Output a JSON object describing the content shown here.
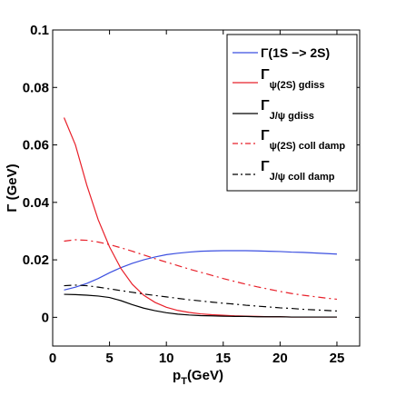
{
  "chart_data": {
    "type": "line",
    "title": "",
    "xlabel": "p",
    "xlabel_sub": "T",
    "xlabel_unit": "(GeV)",
    "ylabel": "Γ (GeV)",
    "xlim": [
      0,
      27
    ],
    "ylim": [
      -0.01,
      0.1
    ],
    "xticks": [
      0,
      5,
      10,
      15,
      20,
      25
    ],
    "yticks": [
      0,
      0.02,
      0.04,
      0.06,
      0.08,
      0.1
    ],
    "ytick_labels": [
      "0",
      "0.02",
      "0.04",
      "0.06",
      "0.08",
      "0.1"
    ],
    "grid": false,
    "legend_position": "top-right",
    "series": [
      {
        "name": "Γ(1S −> 2S)",
        "label_main": "Γ(1S −> 2S)",
        "label_sub": "",
        "color": "#3b4fe0",
        "dash": "solid",
        "x": [
          1,
          2,
          3,
          4,
          5,
          6,
          7,
          8,
          9,
          10,
          11,
          12,
          13,
          14,
          15,
          16,
          17,
          18,
          19,
          20,
          21,
          22,
          23,
          24,
          25
        ],
        "y": [
          0.0095,
          0.0105,
          0.0118,
          0.0135,
          0.0155,
          0.0173,
          0.0188,
          0.02,
          0.021,
          0.0218,
          0.0223,
          0.0227,
          0.023,
          0.0231,
          0.0232,
          0.0232,
          0.0232,
          0.0231,
          0.023,
          0.0229,
          0.0227,
          0.0226,
          0.0224,
          0.0222,
          0.022
        ]
      },
      {
        "name": "Γψ(2S) gdiss",
        "label_main": "Γ",
        "label_sub": "ψ(2S) gdiss",
        "color": "#e8202a",
        "dash": "solid",
        "x": [
          1,
          2,
          3,
          4,
          5,
          6,
          7,
          8,
          9,
          10,
          11,
          12,
          13,
          14,
          15,
          16,
          17,
          18,
          19,
          20,
          21,
          22,
          23,
          24,
          25
        ],
        "y": [
          0.0695,
          0.06,
          0.046,
          0.034,
          0.0245,
          0.017,
          0.0115,
          0.0077,
          0.0052,
          0.0035,
          0.0024,
          0.0017,
          0.0012,
          0.0009,
          0.0007,
          0.0005,
          0.0004,
          0.0003,
          0.0002,
          0.0002,
          0.0001,
          0.0001,
          0.0001,
          0.0001,
          0.0001
        ]
      },
      {
        "name": "ΓJ/ψ gdiss",
        "label_main": "Γ",
        "label_sub": "J/ψ gdiss",
        "color": "#000000",
        "dash": "solid",
        "x": [
          1,
          2,
          3,
          4,
          5,
          6,
          7,
          8,
          9,
          10,
          11,
          12,
          13,
          14,
          15,
          16,
          17,
          18,
          19,
          20,
          21,
          22,
          23,
          24,
          25
        ],
        "y": [
          0.008,
          0.0079,
          0.0077,
          0.0074,
          0.0069,
          0.0058,
          0.0044,
          0.0032,
          0.0023,
          0.0016,
          0.0011,
          0.0008,
          0.0006,
          0.0005,
          0.0004,
          0.0003,
          0.0003,
          0.0002,
          0.0002,
          0.0002,
          0.0001,
          0.0001,
          0.0001,
          0.0001,
          0.0001
        ]
      },
      {
        "name": "Γψ(2S) coll damp",
        "label_main": "Γ",
        "label_sub": "ψ(2S) coll damp",
        "color": "#e8202a",
        "dash": "dashdot",
        "x": [
          1,
          2,
          3,
          4,
          5,
          6,
          7,
          8,
          9,
          10,
          11,
          12,
          13,
          14,
          15,
          16,
          17,
          18,
          19,
          20,
          21,
          22,
          23,
          24,
          25
        ],
        "y": [
          0.0265,
          0.027,
          0.0268,
          0.0262,
          0.0253,
          0.0242,
          0.023,
          0.0217,
          0.0204,
          0.0192,
          0.018,
          0.0168,
          0.0157,
          0.0146,
          0.0135,
          0.0125,
          0.0115,
          0.0106,
          0.0098,
          0.009,
          0.0083,
          0.0077,
          0.0072,
          0.0067,
          0.0063
        ]
      },
      {
        "name": "ΓJ/ψ coll damp",
        "label_main": "Γ",
        "label_sub": "J/ψ coll damp",
        "color": "#000000",
        "dash": "dashdot",
        "x": [
          1,
          2,
          3,
          4,
          5,
          6,
          7,
          8,
          9,
          10,
          11,
          12,
          13,
          14,
          15,
          16,
          17,
          18,
          19,
          20,
          21,
          22,
          23,
          24,
          25
        ],
        "y": [
          0.011,
          0.0112,
          0.011,
          0.0105,
          0.0099,
          0.0093,
          0.0087,
          0.0081,
          0.0076,
          0.0071,
          0.0066,
          0.0061,
          0.0057,
          0.0053,
          0.0049,
          0.0046,
          0.0042,
          0.0039,
          0.0036,
          0.0033,
          0.0031,
          0.0028,
          0.0026,
          0.0024,
          0.0022
        ]
      }
    ]
  }
}
